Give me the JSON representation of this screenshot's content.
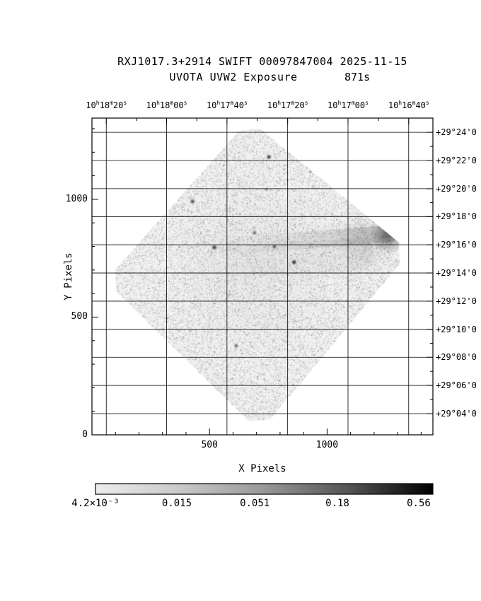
{
  "header": {
    "title": "RXJ1017.3+2914 SWIFT 00097847004 2025-11-15",
    "subtitle": "UVOTA UVW2 Exposure",
    "exposure": "871s"
  },
  "chart_data": {
    "type": "heatmap",
    "title": "RXJ1017.3+2914 SWIFT 00097847004 2025-11-15",
    "subtitle": "UVOTA UVW2 Exposure 871s",
    "description": "SWIFT UVOT UVW2 exposure map: diamond-shaped (rotated square) field of view with grainy gray exposure, a darker band toward the upper-right corner, and several dark point sources.",
    "xlabel": "X Pixels",
    "ylabel": "Y Pixels",
    "xlim": [
      0,
      1450
    ],
    "ylim": [
      0,
      1345
    ],
    "grid": true,
    "x_major_ticks": [
      500,
      1000
    ],
    "x_minor_step": 100,
    "y_major_ticks": [
      0,
      500,
      1000
    ],
    "y_minor_step": 100,
    "ra_ticks": [
      {
        "pos": 0.042,
        "h": "10",
        "m": "18",
        "s": "20"
      },
      {
        "pos": 0.219,
        "h": "10",
        "m": "18",
        "s": "00"
      },
      {
        "pos": 0.396,
        "h": "10",
        "m": "17",
        "s": "40"
      },
      {
        "pos": 0.574,
        "h": "10",
        "m": "17",
        "s": "20"
      },
      {
        "pos": 0.751,
        "h": "10",
        "m": "17",
        "s": "00"
      },
      {
        "pos": 0.929,
        "h": "10",
        "m": "16",
        "s": "40"
      }
    ],
    "dec_ticks": [
      {
        "pos": 0.045,
        "label": "+29°24'0"
      },
      {
        "pos": 0.134,
        "label": "+29°22'0"
      },
      {
        "pos": 0.223,
        "label": "+29°20'0"
      },
      {
        "pos": 0.311,
        "label": "+29°18'0"
      },
      {
        "pos": 0.4,
        "label": "+29°16'0"
      },
      {
        "pos": 0.489,
        "label": "+29°14'0"
      },
      {
        "pos": 0.578,
        "label": "+29°12'0"
      },
      {
        "pos": 0.667,
        "label": "+29°10'0"
      },
      {
        "pos": 0.755,
        "label": "+29°08'0"
      },
      {
        "pos": 0.844,
        "label": "+29°06'0"
      },
      {
        "pos": 0.933,
        "label": "+29°04'0"
      }
    ],
    "colorbar": {
      "labels": [
        {
          "pos": 0.0,
          "text": "4.2×10⁻³"
        },
        {
          "pos": 0.241,
          "text": "0.015"
        },
        {
          "pos": 0.472,
          "text": "0.051"
        },
        {
          "pos": 0.717,
          "text": "0.18"
        },
        {
          "pos": 0.958,
          "text": "0.56"
        }
      ],
      "stops": [
        "#ededed",
        "#c9c9c9",
        "#989898",
        "#545454",
        "#000000"
      ]
    },
    "field": {
      "vertices": [
        [
          0.4606,
          0.0045
        ],
        [
          0.9336,
          0.4219
        ],
        [
          0.4917,
          0.9911
        ],
        [
          0.0394,
          0.5134
        ]
      ],
      "corner_cut": 0.07,
      "base_alpha": 0.05,
      "speckle_count": 60000
    },
    "features": {
      "band": {
        "x1": 0.33,
        "y1": 0.41,
        "x2": 0.875,
        "y2": 0.365,
        "width": 24,
        "alpha": 0.14
      },
      "band2": {
        "x1": 0.3,
        "y1": 0.46,
        "x2": 0.78,
        "y2": 0.43,
        "width": 46,
        "alpha": 0.04
      },
      "smudges": [
        {
          "x": 0.869,
          "y": 0.369,
          "r": 26,
          "a": 0.5
        },
        {
          "x": 0.8,
          "y": 0.395,
          "r": 45,
          "a": 0.12
        },
        {
          "x": 0.48,
          "y": 0.45,
          "r": 130,
          "a": 0.04
        }
      ],
      "sources": [
        {
          "x": 0.519,
          "y": 0.123,
          "r": 2.5,
          "a": 0.75
        },
        {
          "x": 0.295,
          "y": 0.263,
          "r": 2.5,
          "a": 0.7
        },
        {
          "x": 0.512,
          "y": 0.225,
          "r": 1.5,
          "a": 0.5
        },
        {
          "x": 0.359,
          "y": 0.408,
          "r": 2.5,
          "a": 0.8
        },
        {
          "x": 0.477,
          "y": 0.362,
          "r": 2.0,
          "a": 0.6
        },
        {
          "x": 0.535,
          "y": 0.406,
          "r": 2.0,
          "a": 0.65
        },
        {
          "x": 0.593,
          "y": 0.455,
          "r": 2.5,
          "a": 0.85
        },
        {
          "x": 0.423,
          "y": 0.719,
          "r": 2.0,
          "a": 0.6
        },
        {
          "x": 0.716,
          "y": 0.748,
          "r": 2.0,
          "a": 0.7
        },
        {
          "x": 0.905,
          "y": 0.493,
          "r": 2.0,
          "a": 0.6
        },
        {
          "x": 0.699,
          "y": 0.085,
          "r": 1.5,
          "a": 0.4
        },
        {
          "x": 0.641,
          "y": 0.17,
          "r": 1.2,
          "a": 0.35
        },
        {
          "x": 0.826,
          "y": 0.636,
          "r": 1.5,
          "a": 0.4
        }
      ]
    }
  }
}
